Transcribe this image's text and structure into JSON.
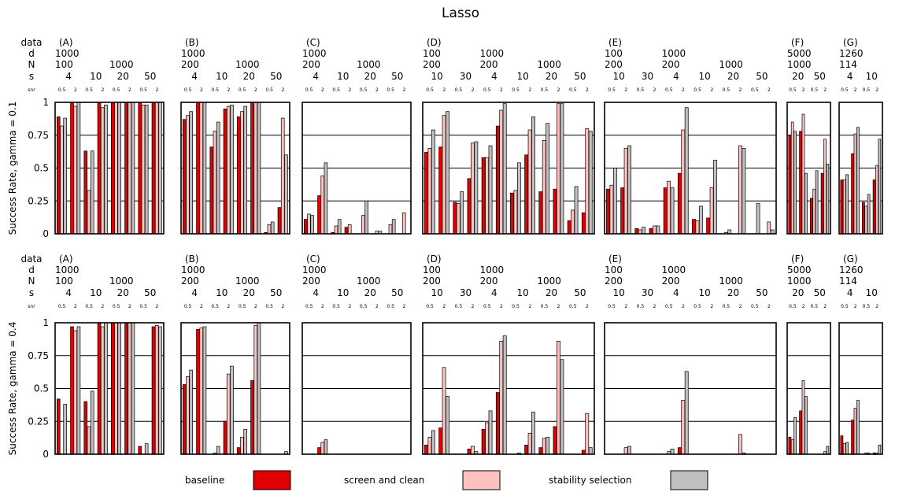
{
  "title": "Lasso",
  "row_labels": {
    "data": "data",
    "d": "d",
    "N": "N",
    "s": "s",
    "snr": "snr"
  },
  "legend": [
    {
      "name": "baseline",
      "color": "#e00000"
    },
    {
      "name": "screen and clean",
      "color": "#ffc0c0"
    },
    {
      "name": "stability selection",
      "color": "#c0c0c0"
    }
  ],
  "chart_data": {
    "type": "bar",
    "series": [
      "baseline",
      "screen and clean",
      "stability selection"
    ],
    "ylim": [
      0,
      1
    ],
    "yticks": [
      "0",
      "0.25",
      "0.5",
      "0.75",
      "1"
    ],
    "snr_labels": [
      "0.5",
      "2"
    ],
    "rows": [
      {
        "ylabel": "Success Rate, gamma = 0.1"
      },
      {
        "ylabel": "Success Rate, gamma = 0.4"
      }
    ],
    "datasets": [
      {
        "name": "(A)",
        "d": [
          {
            "v": "1000",
            "span": 8
          }
        ],
        "N": [
          {
            "v": "100",
            "span": 4
          },
          {
            "v": "1000",
            "span": 4
          }
        ],
        "s": [
          "4",
          "10",
          "20",
          "50"
        ]
      },
      {
        "name": "(B)",
        "d": [
          {
            "v": "1000",
            "span": 8
          }
        ],
        "N": [
          {
            "v": "200",
            "span": 4
          },
          {
            "v": "1000",
            "span": 4
          }
        ],
        "s": [
          "4",
          "10",
          "20",
          "50"
        ]
      },
      {
        "name": "(C)",
        "d": [
          {
            "v": "1000",
            "span": 8
          }
        ],
        "N": [
          {
            "v": "200",
            "span": 4
          },
          {
            "v": "1000",
            "span": 4
          }
        ],
        "s": [
          "4",
          "10",
          "20",
          "50"
        ]
      },
      {
        "name": "(D)",
        "d": [
          {
            "v": "100",
            "span": 4
          },
          {
            "v": "1000",
            "span": 8
          }
        ],
        "N": [
          {
            "v": "200",
            "span": 4
          },
          {
            "v": "200",
            "span": 4
          },
          {
            "v": "1000",
            "span": 4
          }
        ],
        "s": [
          "10",
          "30",
          "4",
          "10",
          "20",
          "50"
        ]
      },
      {
        "name": "(E)",
        "d": [
          {
            "v": "100",
            "span": 4
          },
          {
            "v": "1000",
            "span": 8
          }
        ],
        "N": [
          {
            "v": "200",
            "span": 4
          },
          {
            "v": "200",
            "span": 4
          },
          {
            "v": "1000",
            "span": 4
          }
        ],
        "s": [
          "10",
          "30",
          "4",
          "10",
          "20",
          "50"
        ]
      },
      {
        "name": "(F)",
        "d": [
          {
            "v": "5000",
            "span": 4
          }
        ],
        "N": [
          {
            "v": "1000",
            "span": 4
          }
        ],
        "s": [
          "20",
          "50"
        ]
      },
      {
        "name": "(G)",
        "d": [
          {
            "v": "1260",
            "span": 4
          }
        ],
        "N": [
          {
            "v": "114",
            "span": 4
          }
        ],
        "s": [
          "4",
          "10"
        ]
      }
    ],
    "values": [
      [
        [
          [
            0.89,
            0.82,
            0.88
          ],
          [
            1.0,
            0.97,
            1.0
          ],
          [
            0.63,
            0.33,
            0.63
          ],
          [
            1.0,
            0.96,
            0.98
          ],
          [
            1.0,
            1.0,
            1.0
          ],
          [
            1.0,
            1.0,
            1.0
          ],
          [
            1.0,
            0.98,
            0.98
          ],
          [
            1.0,
            1.0,
            1.0
          ]
        ],
        [
          [
            0.87,
            0.9,
            0.93
          ],
          [
            1.0,
            1.0,
            1.0
          ],
          [
            0.66,
            0.78,
            0.85
          ],
          [
            0.95,
            0.97,
            0.98
          ],
          [
            0.89,
            0.93,
            0.97
          ],
          [
            1.0,
            1.0,
            1.0
          ],
          [
            0.01,
            0.07,
            0.09
          ],
          [
            0.2,
            0.88,
            0.6
          ]
        ],
        [
          [
            0.11,
            0.15,
            0.14
          ],
          [
            0.29,
            0.44,
            0.54
          ],
          [
            0.01,
            0.06,
            0.11
          ],
          [
            0.05,
            0.07,
            0.0
          ],
          [
            0.0,
            0.14,
            0.25
          ],
          [
            0.0,
            0.02,
            0.02
          ],
          [
            0.0,
            0.07,
            0.11
          ],
          [
            0.0,
            0.16,
            0.0
          ]
        ],
        [
          [
            0.62,
            0.65,
            0.79
          ],
          [
            0.66,
            0.9,
            0.93
          ],
          [
            0.24,
            0.23,
            0.32
          ],
          [
            0.42,
            0.69,
            0.7
          ],
          [
            0.58,
            0.58,
            0.67
          ],
          [
            0.82,
            0.94,
            0.99
          ],
          [
            0.31,
            0.33,
            0.54
          ],
          [
            0.6,
            0.79,
            0.89
          ],
          [
            0.32,
            0.71,
            0.84
          ],
          [
            0.34,
            0.99,
            0.99
          ],
          [
            0.1,
            0.18,
            0.36
          ],
          [
            0.16,
            0.8,
            0.78
          ]
        ],
        [
          [
            0.34,
            0.37,
            0.5
          ],
          [
            0.35,
            0.65,
            0.67
          ],
          [
            0.04,
            0.03,
            0.05
          ],
          [
            0.04,
            0.06,
            0.06
          ],
          [
            0.35,
            0.4,
            0.35
          ],
          [
            0.46,
            0.79,
            0.96
          ],
          [
            0.11,
            0.1,
            0.21
          ],
          [
            0.12,
            0.35,
            0.56
          ],
          [
            0.0,
            0.01,
            0.03
          ],
          [
            0.0,
            0.67,
            0.65
          ],
          [
            0.0,
            0.0,
            0.23
          ],
          [
            0.0,
            0.09,
            0.03
          ]
        ],
        [
          [
            0.75,
            0.85,
            0.78
          ],
          [
            0.78,
            0.91,
            0.46
          ],
          [
            0.27,
            0.34,
            0.48
          ],
          [
            0.46,
            0.72,
            0.53
          ]
        ],
        [
          [
            0.41,
            0.41,
            0.45
          ],
          [
            0.61,
            0.76,
            0.81
          ],
          [
            0.24,
            0.21,
            0.3
          ],
          [
            0.41,
            0.52,
            0.72
          ]
        ]
      ],
      [
        [
          [
            0.42,
            0.0,
            0.38
          ],
          [
            0.97,
            0.94,
            0.97
          ],
          [
            0.4,
            0.21,
            0.48
          ],
          [
            1.0,
            0.97,
            1.0
          ],
          [
            1.0,
            1.0,
            1.0
          ],
          [
            1.0,
            1.0,
            1.0
          ],
          [
            0.06,
            0.0,
            0.08
          ],
          [
            0.97,
            0.98,
            0.97
          ]
        ],
        [
          [
            0.53,
            0.59,
            0.64
          ],
          [
            0.95,
            0.96,
            0.97
          ],
          [
            0.0,
            0.01,
            0.06
          ],
          [
            0.25,
            0.61,
            0.67
          ],
          [
            0.05,
            0.13,
            0.19
          ],
          [
            0.56,
            0.98,
            1.0
          ],
          [
            0.0,
            0.0,
            0.0
          ],
          [
            0.0,
            0.0,
            0.02
          ]
        ],
        [
          [
            0.0,
            0.0,
            0.0
          ],
          [
            0.05,
            0.09,
            0.11
          ],
          [
            0.0,
            0.0,
            0.0
          ],
          [
            0.0,
            0.0,
            0.0
          ],
          [
            0.0,
            0.0,
            0.0
          ],
          [
            0.0,
            0.0,
            0.0
          ],
          [
            0.0,
            0.0,
            0.0
          ],
          [
            0.0,
            0.0,
            0.0
          ]
        ],
        [
          [
            0.07,
            0.13,
            0.18
          ],
          [
            0.2,
            0.66,
            0.44
          ],
          [
            0.0,
            0.0,
            0.0
          ],
          [
            0.04,
            0.06,
            0.02
          ],
          [
            0.19,
            0.24,
            0.33
          ],
          [
            0.47,
            0.86,
            0.9
          ],
          [
            0.0,
            0.0,
            0.01
          ],
          [
            0.07,
            0.16,
            0.32
          ],
          [
            0.05,
            0.12,
            0.13
          ],
          [
            0.21,
            0.86,
            0.72
          ],
          [
            0.0,
            0.0,
            0.0
          ],
          [
            0.03,
            0.31,
            0.05
          ]
        ],
        [
          [
            0.0,
            0.0,
            0.0
          ],
          [
            0.0,
            0.05,
            0.06
          ],
          [
            0.0,
            0.0,
            0.0
          ],
          [
            0.0,
            0.0,
            0.0
          ],
          [
            0.0,
            0.02,
            0.04
          ],
          [
            0.05,
            0.41,
            0.63
          ],
          [
            0.0,
            0.0,
            0.0
          ],
          [
            0.0,
            0.0,
            0.0
          ],
          [
            0.0,
            0.0,
            0.0
          ],
          [
            0.0,
            0.15,
            0.01
          ],
          [
            0.0,
            0.0,
            0.0
          ],
          [
            0.0,
            0.0,
            0.0
          ]
        ],
        [
          [
            0.13,
            0.11,
            0.28
          ],
          [
            0.33,
            0.56,
            0.44
          ],
          [
            0.0,
            0.0,
            0.0
          ],
          [
            0.0,
            0.02,
            0.06
          ]
        ],
        [
          [
            0.14,
            0.08,
            0.09
          ],
          [
            0.26,
            0.35,
            0.41
          ],
          [
            0.0,
            0.01,
            0.01
          ],
          [
            0.01,
            0.01,
            0.07
          ]
        ]
      ]
    ]
  }
}
